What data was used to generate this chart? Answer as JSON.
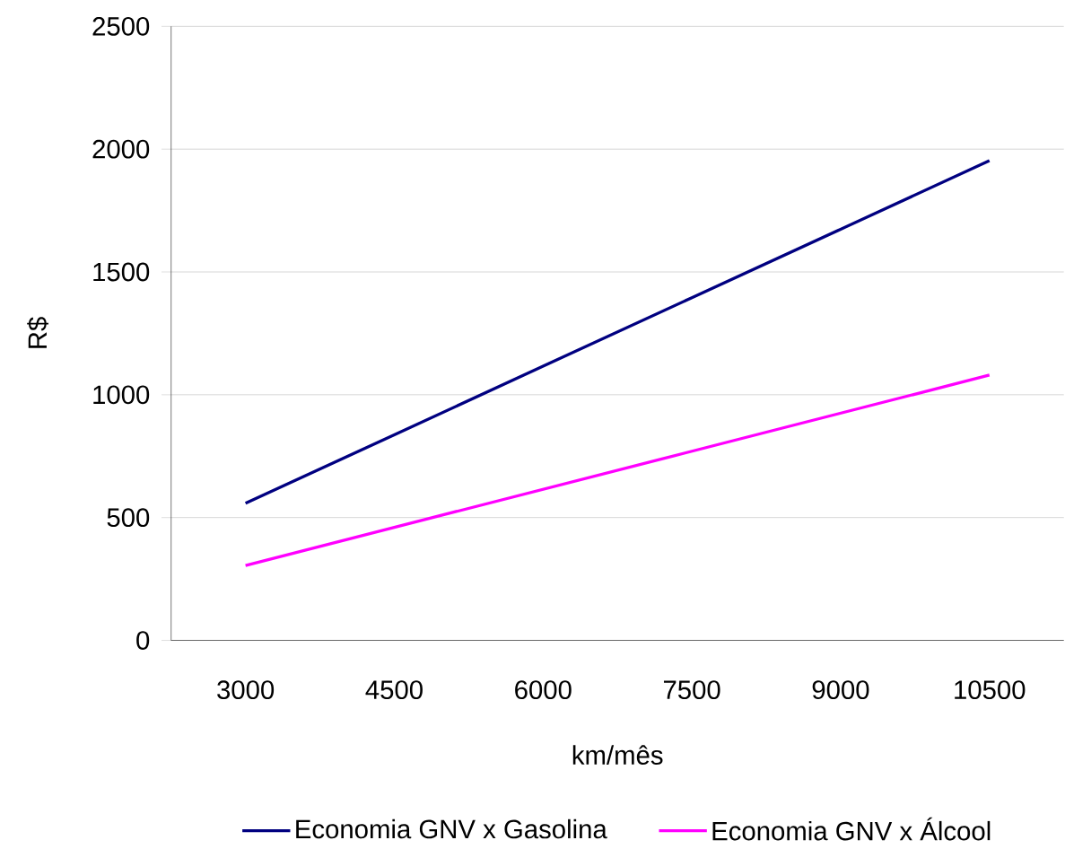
{
  "chart_data": {
    "type": "line",
    "xlabel": "km/mês",
    "ylabel": "R$",
    "categories": [
      "3000",
      "4500",
      "6000",
      "7500",
      "9000",
      "10500"
    ],
    "series": [
      {
        "name": "Economia GNV x Gasolina",
        "color": "#000080",
        "values": [
          558,
          837,
          1116,
          1395,
          1674,
          1953
        ]
      },
      {
        "name": "Economia GNV x Álcool",
        "color": "#ff00ff",
        "values": [
          305,
          460,
          615,
          770,
          925,
          1080
        ]
      }
    ],
    "ylim": [
      0,
      2500
    ],
    "yticks": [
      0,
      500,
      1000,
      1500,
      2000,
      2500
    ],
    "grid": "y",
    "legend": "bottom",
    "marker": "none",
    "line_style": "solid"
  }
}
